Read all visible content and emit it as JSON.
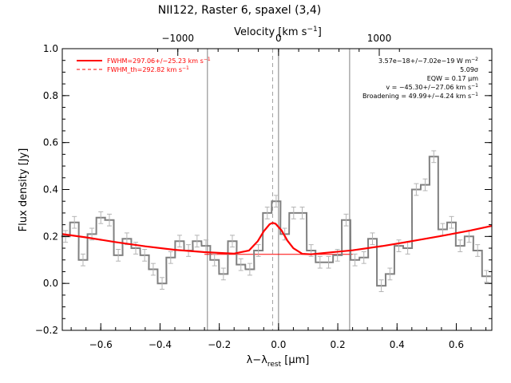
{
  "chart_data": {
    "type": "line",
    "title": "NII122, Raster 6, spaxel (3,4)",
    "xlabel": "λ−λ",
    "xlabel_sub": "rest",
    "xlabel_unit": " [μm]",
    "ylabel": "Flux density [Jy]",
    "top_axis_label": "Velocity [km s",
    "top_axis_label_sup": "−1",
    "top_axis_label_end": "]",
    "xlim": [
      -0.73,
      0.72
    ],
    "ylim": [
      -0.2,
      1.0
    ],
    "x_ticks": [
      "−0.6",
      "−0.4",
      "−0.2",
      "0.0",
      "0.2",
      "0.4",
      "0.6"
    ],
    "x_tick_values": [
      -0.6,
      -0.4,
      -0.2,
      0.0,
      0.2,
      0.4,
      0.6
    ],
    "y_ticks": [
      "−0.2",
      "0.0",
      "0.2",
      "0.4",
      "0.6",
      "0.8",
      "1.0"
    ],
    "y_tick_values": [
      -0.2,
      0.0,
      0.2,
      0.4,
      0.6,
      0.8,
      1.0
    ],
    "top_ticks": [
      "−1000",
      "0",
      "1000"
    ],
    "top_tick_values": [
      -0.34,
      0.0,
      0.34
    ],
    "vertical_lines": [
      -0.24,
      0.0,
      0.24
    ],
    "dashed_line_x": -0.02,
    "grid": false,
    "legend_position": "top-left",
    "legend": [
      "FWHM=297.06+/−25.23 km s",
      "FWHM_th=292.82 km s"
    ],
    "legend_sup": "−1",
    "annotations": [
      {
        "text": "3.57e−18+/−7.02e−19 W m",
        "sup": "−2"
      },
      {
        "text": "5.09σ",
        "sup": ""
      },
      {
        "text": "EQW = 0.17 μm",
        "sup": ""
      },
      {
        "text": "v = −45.30+/−27.06 km s",
        "sup": "−1"
      },
      {
        "text": "Broadening = 49.99+/−4.24 km s",
        "sup": "−1"
      }
    ],
    "series": [
      {
        "style": "histogram",
        "bin_width": 0.0296,
        "x": [
          -0.719,
          -0.689,
          -0.66,
          -0.63,
          -0.6,
          -0.571,
          -0.541,
          -0.512,
          -0.482,
          -0.452,
          -0.423,
          -0.393,
          -0.364,
          -0.334,
          -0.304,
          -0.275,
          -0.245,
          -0.216,
          -0.186,
          -0.156,
          -0.127,
          -0.097,
          -0.068,
          -0.038,
          -0.008,
          0.021,
          0.051,
          0.08,
          0.11,
          0.14,
          0.169,
          0.199,
          0.228,
          0.258,
          0.288,
          0.317,
          0.347,
          0.376,
          0.406,
          0.436,
          0.465,
          0.495,
          0.524,
          0.554,
          0.584,
          0.613,
          0.643,
          0.672,
          0.702
        ],
        "values": [
          0.2,
          0.26,
          0.1,
          0.21,
          0.28,
          0.27,
          0.12,
          0.19,
          0.15,
          0.12,
          0.06,
          0.0,
          0.11,
          0.18,
          0.14,
          0.18,
          0.16,
          0.1,
          0.04,
          0.18,
          0.08,
          0.06,
          0.14,
          0.3,
          0.35,
          0.21,
          0.3,
          0.3,
          0.14,
          0.09,
          0.09,
          0.12,
          0.27,
          0.1,
          0.11,
          0.19,
          -0.01,
          0.04,
          0.16,
          0.15,
          0.4,
          0.42,
          0.54,
          0.23,
          0.26,
          0.16,
          0.2,
          0.14,
          0.03
        ],
        "errors": [
          0.025,
          0.025,
          0.025,
          0.025,
          0.025,
          0.025,
          0.025,
          0.025,
          0.025,
          0.025,
          0.025,
          0.025,
          0.025,
          0.025,
          0.025,
          0.025,
          0.025,
          0.025,
          0.025,
          0.025,
          0.025,
          0.025,
          0.025,
          0.025,
          0.025,
          0.025,
          0.025,
          0.025,
          0.025,
          0.025,
          0.025,
          0.025,
          0.025,
          0.025,
          0.025,
          0.025,
          0.025,
          0.025,
          0.025,
          0.025,
          0.025,
          0.025,
          0.025,
          0.025,
          0.025,
          0.025,
          0.025,
          0.025,
          0.025
        ],
        "color": "#808080"
      },
      {
        "style": "line",
        "x": [
          -0.73,
          -0.65,
          -0.55,
          -0.45,
          -0.35,
          -0.25,
          -0.15,
          -0.1,
          -0.07,
          -0.05,
          -0.03,
          -0.02,
          -0.01,
          0.01,
          0.03,
          0.05,
          0.08,
          0.11,
          0.15,
          0.25,
          0.35,
          0.45,
          0.55,
          0.65,
          0.72
        ],
        "values": [
          0.21,
          0.196,
          0.176,
          0.158,
          0.143,
          0.133,
          0.127,
          0.14,
          0.18,
          0.222,
          0.252,
          0.258,
          0.254,
          0.226,
          0.182,
          0.15,
          0.126,
          0.124,
          0.129,
          0.141,
          0.159,
          0.18,
          0.202,
          0.226,
          0.245
        ],
        "color": "#ff0000"
      },
      {
        "style": "line",
        "dash": "dashed-baseline",
        "x": [
          -0.25,
          0.25
        ],
        "values": [
          0.124,
          0.124
        ],
        "color": "#ff0000"
      }
    ]
  }
}
